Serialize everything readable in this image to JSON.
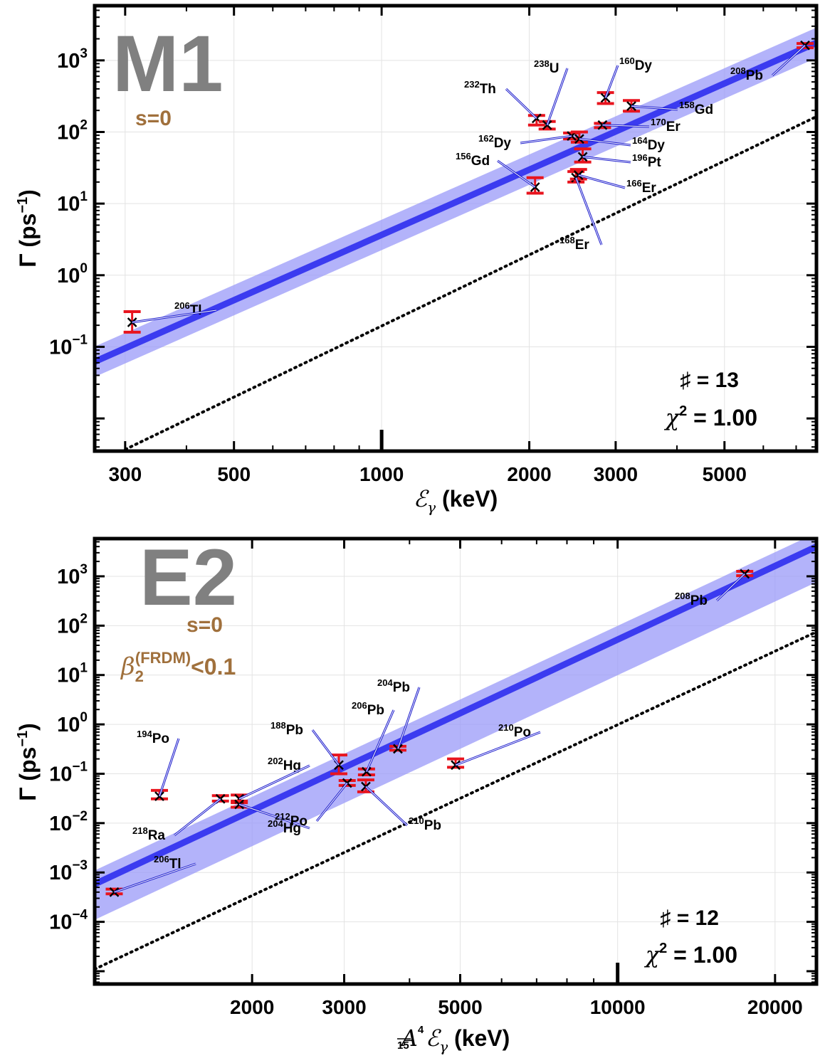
{
  "chart_data": [
    {
      "type": "scatter",
      "panel_label": "M1",
      "subtitle_lines": [
        "s=0"
      ],
      "xlabel": "ℰ",
      "xlabel_sub": "γ",
      "xlabel_unit": "(keV)",
      "ylabel": "Γ (ps",
      "ylabel_sup": "−1",
      "ylabel_close": ")",
      "x_scale": "log",
      "y_scale": "log",
      "xlim": [
        260,
        7700
      ],
      "ylim": [
        0.0035,
        5800
      ],
      "x_ticks": [
        300,
        500,
        1000,
        2000,
        3000,
        5000
      ],
      "x_tick_labels": [
        "300",
        "500",
        "1000",
        "2000",
        "3000",
        "5000"
      ],
      "y_ticks": [
        0.1,
        1,
        10,
        100,
        1000
      ],
      "y_tick_labels": [
        {
          "base": "10",
          "exp": "−1"
        },
        {
          "base": "10",
          "exp": "0"
        },
        {
          "base": "10",
          "exp": "1"
        },
        {
          "base": "10",
          "exp": "2"
        },
        {
          "base": "10",
          "exp": "3"
        }
      ],
      "grid": true,
      "fit_line": {
        "color": "#3b3bf0",
        "x": [
          260,
          7700
        ],
        "y": [
          0.062,
          1760
        ]
      },
      "fit_band": {
        "color": "#9a9af8",
        "lower": [
          0.038,
          1080
        ],
        "upper": [
          0.101,
          2870
        ]
      },
      "reference_line": {
        "style": "dotted",
        "color": "#000000",
        "x": [
          260,
          7700
        ],
        "y": [
          0.0023,
          164
        ]
      },
      "points": [
        {
          "label": "Tl",
          "mass": "206",
          "x": 310,
          "y": 0.22,
          "yerr_lo": 0.16,
          "yerr_hi": 0.31
        },
        {
          "label": "Gd",
          "mass": "156",
          "x": 2055,
          "y": 17,
          "yerr_lo": 14,
          "yerr_hi": 23
        },
        {
          "label": "Th",
          "mass": "232",
          "x": 2070,
          "y": 155,
          "yerr_lo": 125,
          "yerr_hi": 170
        },
        {
          "label": "U",
          "mass": "238",
          "x": 2175,
          "y": 125,
          "yerr_lo": 110,
          "yerr_hi": 140
        },
        {
          "label": "Dy",
          "mass": "162",
          "x": 2440,
          "y": 88,
          "yerr_lo": 80,
          "yerr_hi": 97
        },
        {
          "label": "Dy",
          "mass": "164",
          "x": 2530,
          "y": 80,
          "yerr_lo": 72,
          "yerr_hi": 100
        },
        {
          "label": "Er",
          "mass": "168",
          "x": 2490,
          "y": 23,
          "yerr_lo": 20,
          "yerr_hi": 28
        },
        {
          "label": "Er",
          "mass": "166",
          "x": 2520,
          "y": 25,
          "yerr_lo": 22,
          "yerr_hi": 30
        },
        {
          "label": "Pt",
          "mass": "196",
          "x": 2570,
          "y": 45,
          "yerr_lo": 38,
          "yerr_hi": 58
        },
        {
          "label": "Er",
          "mass": "170",
          "x": 2820,
          "y": 125,
          "yerr_lo": 115,
          "yerr_hi": 132
        },
        {
          "label": "Dy",
          "mass": "160",
          "x": 2860,
          "y": 300,
          "yerr_lo": 250,
          "yerr_hi": 355
        },
        {
          "label": "Gd",
          "mass": "158",
          "x": 3230,
          "y": 230,
          "yerr_lo": 195,
          "yerr_hi": 275
        },
        {
          "label": "Pb",
          "mass": "208",
          "x": 7300,
          "y": 1620,
          "yerr_lo": 1500,
          "yerr_hi": 1720
        }
      ],
      "stats": {
        "count_label": "♯ = 13",
        "chi_label": "χ",
        "chi_sup": "2",
        "chi_value": " = 1.00"
      }
    },
    {
      "type": "scatter",
      "panel_label": "E2",
      "subtitle_lines": [
        "s=0"
      ],
      "beta_label": {
        "base": "β",
        "sub": "2",
        "sup": "(FRDM)",
        "tail": "<0.1"
      },
      "xlabel": "A",
      "xlabel_frac_num": "4",
      "xlabel_frac_den": "15",
      "xlabel_sym": "ℰ",
      "xlabel_sub": "γ",
      "xlabel_unit": "(keV)",
      "ylabel": "Γ (ps",
      "ylabel_sup": "−1",
      "ylabel_close": ")",
      "x_scale": "log",
      "y_scale": "log",
      "xlim": [
        1000,
        24000
      ],
      "ylim": [
        5.5e-06,
        5800
      ],
      "x_ticks": [
        2000,
        3000,
        5000,
        10000,
        20000
      ],
      "x_tick_labels": [
        "2000",
        "3000",
        "5000",
        "10000",
        "20000"
      ],
      "y_ticks": [
        0.0001,
        0.001,
        0.01,
        0.1,
        1,
        10,
        100,
        1000
      ],
      "y_tick_labels": [
        {
          "base": "10",
          "exp": "−4"
        },
        {
          "base": "10",
          "exp": "−3"
        },
        {
          "base": "10",
          "exp": "−2"
        },
        {
          "base": "10",
          "exp": "−1"
        },
        {
          "base": "10",
          "exp": "0"
        },
        {
          "base": "10",
          "exp": "1"
        },
        {
          "base": "10",
          "exp": "2"
        },
        {
          "base": "10",
          "exp": "3"
        }
      ],
      "grid": true,
      "fit_line": {
        "color": "#3b3bf0",
        "x": [
          1000,
          24000
        ],
        "y": [
          0.00058,
          4000
        ]
      },
      "fit_band": {
        "color": "#9a9af8",
        "lower": [
          0.00011,
          760
        ],
        "upper": [
          0.0011,
          7600
        ]
      },
      "reference_line": {
        "style": "dotted",
        "color": "#000000",
        "x": [
          1000,
          24000
        ],
        "y": [
          1.1e-05,
          75
        ]
      },
      "points": [
        {
          "label": "Tl",
          "mass": "206",
          "x": 1090,
          "y": 0.0004,
          "yerr_lo": 0.00037,
          "yerr_hi": 0.00046
        },
        {
          "label": "Po",
          "mass": "194",
          "x": 1330,
          "y": 0.035,
          "yerr_lo": 0.031,
          "yerr_hi": 0.046
        },
        {
          "label": "Ra",
          "mass": "218",
          "x": 1740,
          "y": 0.031,
          "yerr_lo": 0.028,
          "yerr_hi": 0.036
        },
        {
          "label": "Hg",
          "mass": "202",
          "x": 1890,
          "y": 0.031,
          "yerr_lo": 0.026,
          "yerr_hi": 0.037
        },
        {
          "label": "Hg",
          "mass": "204",
          "x": 1890,
          "y": 0.024,
          "yerr_lo": 0.021,
          "yerr_hi": 0.028
        },
        {
          "label": "Pb",
          "mass": "188",
          "x": 2930,
          "y": 0.15,
          "yerr_lo": 0.1,
          "yerr_hi": 0.24
        },
        {
          "label": "Po",
          "mass": "212",
          "x": 3040,
          "y": 0.065,
          "yerr_lo": 0.058,
          "yerr_hi": 0.073
        },
        {
          "label": "Pb",
          "mass": "206",
          "x": 3310,
          "y": 0.11,
          "yerr_lo": 0.095,
          "yerr_hi": 0.125
        },
        {
          "label": "Pb",
          "mass": "210",
          "x": 3300,
          "y": 0.055,
          "yerr_lo": 0.043,
          "yerr_hi": 0.075
        },
        {
          "label": "Pb",
          "mass": "204",
          "x": 3800,
          "y": 0.32,
          "yerr_lo": 0.3,
          "yerr_hi": 0.36
        },
        {
          "label": "Po",
          "mass": "210",
          "x": 4900,
          "y": 0.15,
          "yerr_lo": 0.135,
          "yerr_hi": 0.2
        },
        {
          "label": "Pb",
          "mass": "208",
          "x": 17500,
          "y": 1120,
          "yerr_lo": 1030,
          "yerr_hi": 1260
        }
      ],
      "stats": {
        "count_label": "♯ = 12",
        "chi_label": "χ",
        "chi_sup": "2",
        "chi_value": " = 1.00"
      }
    }
  ]
}
